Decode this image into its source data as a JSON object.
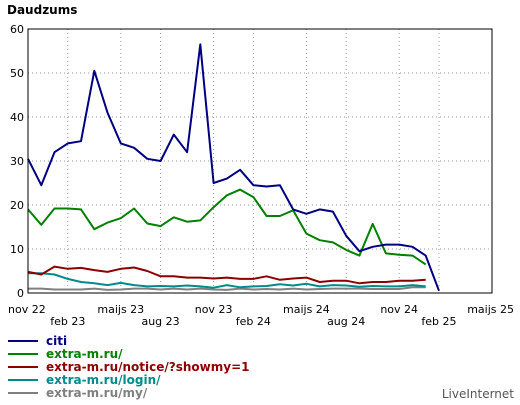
{
  "chart_data": {
    "type": "line",
    "title": "Daudzums",
    "ylim": [
      0,
      60
    ],
    "y_ticks": [
      0,
      10,
      20,
      30,
      40,
      50,
      60
    ],
    "grid": true,
    "legend_position": "bottom-left",
    "x_ticks": [
      {
        "label": "nov 22",
        "index": 0
      },
      {
        "label": "feb 23",
        "index": 3
      },
      {
        "label": "maijs 23",
        "index": 7
      },
      {
        "label": "aug 23",
        "index": 10
      },
      {
        "label": "nov 23",
        "index": 14
      },
      {
        "label": "feb 24",
        "index": 17
      },
      {
        "label": "maijs 24",
        "index": 21
      },
      {
        "label": "aug 24",
        "index": 24
      },
      {
        "label": "nov 24",
        "index": 28
      },
      {
        "label": "feb 25",
        "index": 31
      },
      {
        "label": "maijs 25",
        "index": 35
      }
    ],
    "point_count": 36,
    "series": [
      {
        "name": "citi",
        "color": "#000080",
        "values": [
          30.5,
          24.5,
          32,
          34,
          34.5,
          50.5,
          41,
          34,
          33,
          30.5,
          30,
          36,
          32,
          56.5,
          25,
          26,
          28,
          24.5,
          24.2,
          24.5,
          19,
          18,
          19,
          18.5,
          13,
          9.5,
          10.5,
          11,
          11,
          10.5,
          8.5,
          0.5,
          null,
          null,
          null,
          null
        ]
      },
      {
        "name": "extra-m.ru/",
        "color": "#008000",
        "values": [
          19,
          15.5,
          19.2,
          19.2,
          19,
          14.5,
          16,
          17,
          19.2,
          15.8,
          15.2,
          17.2,
          16.2,
          16.5,
          19.5,
          22.2,
          23.5,
          21.8,
          17.5,
          17.5,
          18.8,
          13.5,
          12,
          11.5,
          9.8,
          8.5,
          15.7,
          9,
          8.7,
          8.5,
          6.5,
          null,
          null,
          null,
          null,
          null
        ]
      },
      {
        "name": "extra-m.ru/notice/?showmy=1",
        "color": "#8b0000",
        "values": [
          4.8,
          4.2,
          6,
          5.5,
          5.7,
          5.2,
          4.8,
          5.5,
          5.8,
          5,
          3.8,
          3.8,
          3.5,
          3.5,
          3.3,
          3.5,
          3.2,
          3.2,
          3.8,
          3,
          3.3,
          3.5,
          2.5,
          2.8,
          2.8,
          2.2,
          2.5,
          2.5,
          2.8,
          2.8,
          3,
          null,
          null,
          null,
          null,
          null
        ]
      },
      {
        "name": "extra-m.ru/login/",
        "color": "#008b8b",
        "values": [
          4.5,
          4.5,
          4.2,
          3.2,
          2.5,
          2.2,
          1.8,
          2.3,
          1.8,
          1.5,
          1.6,
          1.5,
          1.7,
          1.5,
          1.2,
          1.8,
          1.3,
          1.5,
          1.6,
          2,
          1.7,
          2.1,
          1.5,
          1.8,
          1.7,
          1.4,
          1.6,
          1.5,
          1.5,
          1.8,
          1.5,
          null,
          null,
          null,
          null,
          null
        ]
      },
      {
        "name": "extra-m.ru/my/",
        "color": "#808080",
        "values": [
          1,
          1,
          0.8,
          0.8,
          0.8,
          1,
          0.7,
          0.8,
          1,
          1,
          0.8,
          1,
          0.8,
          1,
          0.8,
          0.7,
          1,
          0.8,
          0.9,
          0.8,
          1,
          0.8,
          0.9,
          1,
          1,
          1,
          0.9,
          0.9,
          0.9,
          1.3,
          1.3,
          null,
          null,
          null,
          null,
          null
        ]
      }
    ]
  },
  "brand": "LiveInternet"
}
